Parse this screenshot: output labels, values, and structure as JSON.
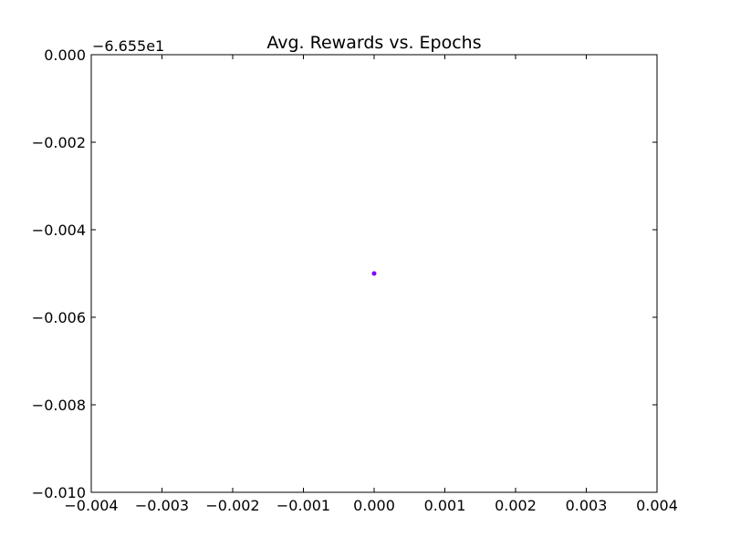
{
  "chart_data": {
    "type": "scatter",
    "title": "Avg. Rewards vs. Epochs",
    "xlabel": "",
    "ylabel": "",
    "y_offset_label": "−6.655e1",
    "xlim": [
      -0.004,
      0.004
    ],
    "ylim": [
      -0.01,
      0.0
    ],
    "x_ticks": [
      -0.004,
      -0.003,
      -0.002,
      -0.001,
      0.0,
      0.001,
      0.002,
      0.003,
      0.004
    ],
    "x_tick_labels": [
      "−0.004",
      "−0.003",
      "−0.002",
      "−0.001",
      "0.000",
      "0.001",
      "0.002",
      "0.003",
      "0.004"
    ],
    "y_ticks": [
      0.0,
      -0.002,
      -0.004,
      -0.006,
      -0.008,
      -0.01
    ],
    "y_tick_labels": [
      "0.000",
      "−0.002",
      "−0.004",
      "−0.006",
      "−0.008",
      "−0.010"
    ],
    "grid": false,
    "points": [
      {
        "x": 0.0,
        "y": -0.005
      }
    ],
    "point_color": "#7f00ff",
    "axis_color": "#000000"
  }
}
